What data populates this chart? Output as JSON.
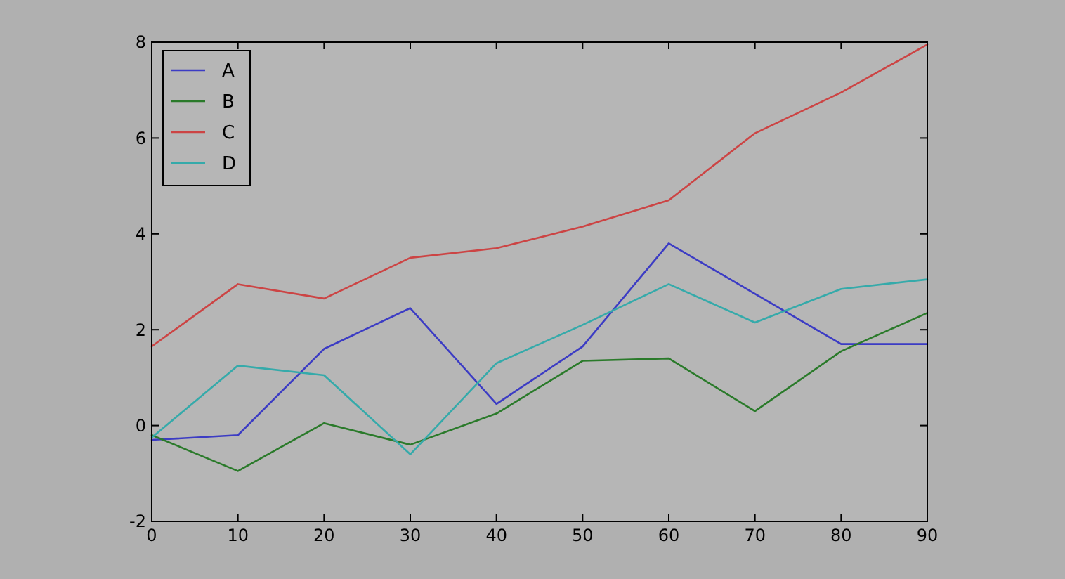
{
  "chart_data": {
    "type": "line",
    "x": [
      0,
      10,
      20,
      30,
      40,
      50,
      60,
      70,
      80,
      90
    ],
    "series": [
      {
        "name": "A",
        "color": "#3c3cc4",
        "values": [
          -0.3,
          -0.2,
          1.6,
          2.45,
          0.45,
          1.65,
          3.8,
          2.75,
          1.7,
          1.7
        ]
      },
      {
        "name": "B",
        "color": "#2a7a2a",
        "values": [
          -0.2,
          -0.95,
          0.05,
          -0.4,
          0.25,
          1.35,
          1.4,
          0.3,
          1.55,
          2.35
        ]
      },
      {
        "name": "C",
        "color": "#cc4444",
        "values": [
          1.65,
          2.95,
          2.65,
          3.5,
          3.7,
          4.15,
          4.7,
          6.1,
          6.95,
          7.95
        ]
      },
      {
        "name": "D",
        "color": "#35aaaa",
        "values": [
          -0.25,
          1.25,
          1.05,
          -0.6,
          1.3,
          2.1,
          2.95,
          2.15,
          2.85,
          3.05
        ]
      }
    ],
    "xlim": [
      0,
      90
    ],
    "xticks": [
      0,
      10,
      20,
      30,
      40,
      50,
      60,
      70,
      80,
      90
    ],
    "ylim": [
      -2,
      8
    ],
    "yticks": [
      -2,
      0,
      2,
      4,
      6,
      8
    ],
    "grid": false,
    "legend": "top left",
    "marker": "none",
    "line_style": "solid"
  }
}
